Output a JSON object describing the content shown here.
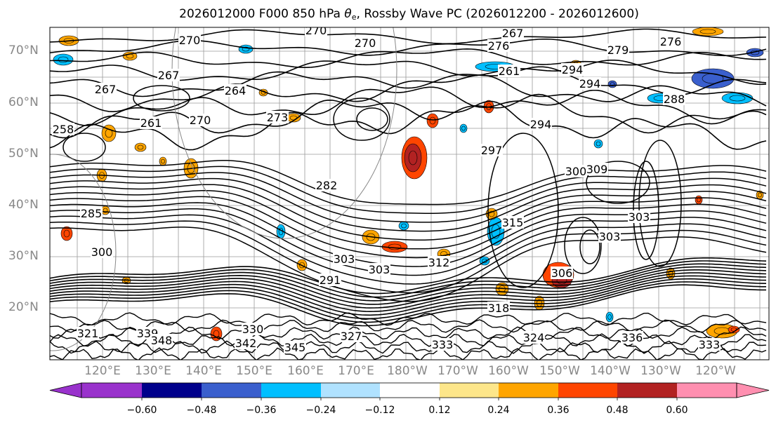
{
  "title": {
    "prefix": "2026012000 F000 850 hPa ",
    "symbol": "θ",
    "subscript": "e",
    "suffix": ", Rossby Wave PC (2026012200 - 2026012600)"
  },
  "map": {
    "projection": "cylindrical",
    "lon_range": [
      "~108°E",
      "~113°W"
    ],
    "lat_range": [
      "~10°N",
      "~75°N"
    ],
    "lat_labels": [
      "70°N",
      "60°N",
      "50°N",
      "40°N",
      "30°N",
      "20°N"
    ],
    "lon_labels": [
      "120°E",
      "130°E",
      "140°E",
      "150°E",
      "160°E",
      "170°E",
      "180°W",
      "170°W",
      "160°W",
      "150°W",
      "140°W",
      "130°W",
      "120°W"
    ],
    "grid": true,
    "contour_color": "#000000",
    "contour_labels": [
      "270",
      "270",
      "267",
      "276",
      "279",
      "276",
      "270",
      "267",
      "264",
      "261",
      "294",
      "294",
      "288",
      "267",
      "270",
      "273",
      "258",
      "261",
      "282",
      "294",
      "297",
      "300",
      "303",
      "303",
      "309",
      "303",
      "303",
      "312",
      "315",
      "318",
      "321",
      "324",
      "333",
      "336",
      "333",
      "339",
      "342",
      "345",
      "348",
      "330",
      "327",
      "291",
      "306",
      "285",
      "300"
    ]
  },
  "colorbar": {
    "levels": [
      "−0.60",
      "−0.48",
      "−0.36",
      "−0.24",
      "−0.12",
      "0.12",
      "0.24",
      "0.36",
      "0.48",
      "0.60"
    ],
    "colors": [
      "#9932cc",
      "#00008b",
      "#3a5fcd",
      "#00bfff",
      "#b0e2ff",
      "#ffffff",
      "#fde68a",
      "#ffa500",
      "#ff4500",
      "#b22222",
      "#ff8fb0"
    ]
  }
}
